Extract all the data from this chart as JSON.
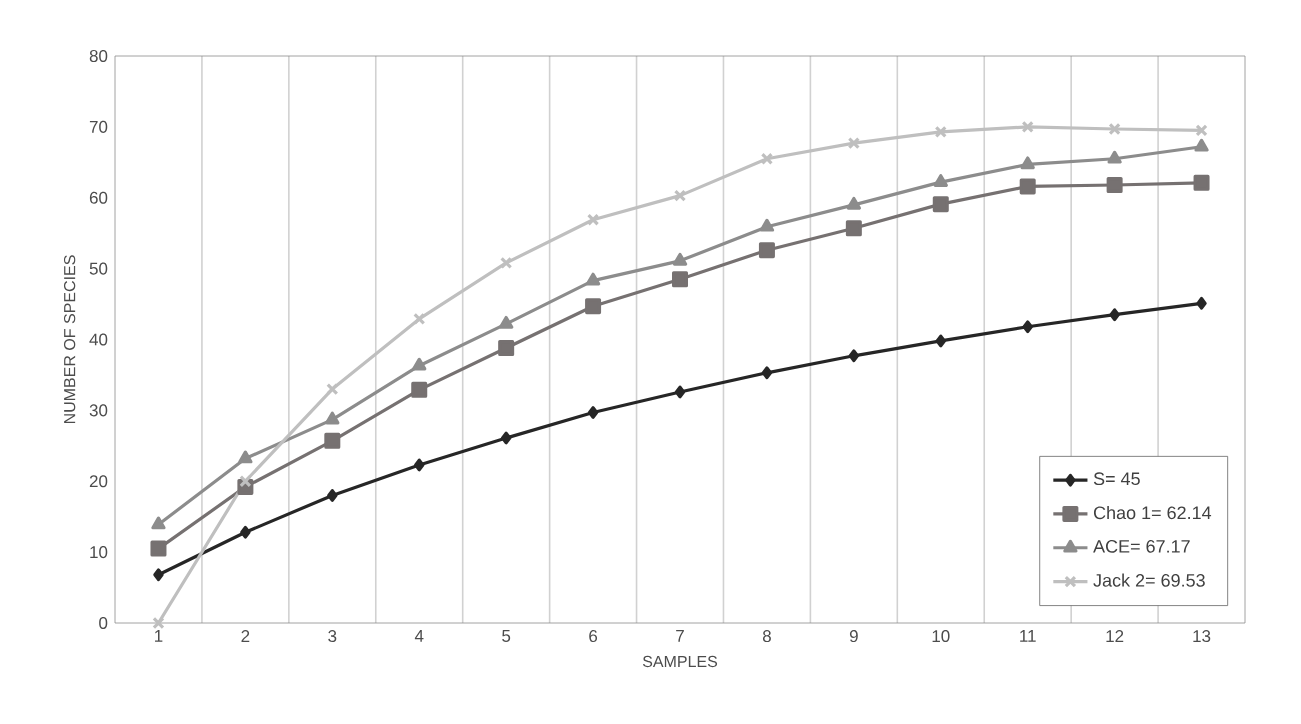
{
  "chart_data": {
    "type": "line",
    "xlabel": "SAMPLES",
    "ylabel": "NUMBER OF SPECIES",
    "categories": [
      "1",
      "2",
      "3",
      "4",
      "5",
      "6",
      "7",
      "8",
      "9",
      "10",
      "11",
      "12",
      "13"
    ],
    "series": [
      {
        "name": "S= 45",
        "color": "#262626",
        "marker": "diamond",
        "values": [
          6.8,
          12.8,
          18,
          22.3,
          26.1,
          29.7,
          32.6,
          35.3,
          37.7,
          39.8,
          41.8,
          43.5,
          45.1
        ]
      },
      {
        "name": "Chao 1= 62.14",
        "color": "#767171",
        "marker": "square",
        "values": [
          10.5,
          19.2,
          25.7,
          32.9,
          38.8,
          44.7,
          48.5,
          52.6,
          55.7,
          59.1,
          61.6,
          61.8,
          62.1
        ]
      },
      {
        "name": "ACE= 67.17",
        "color": "#8c8c8c",
        "marker": "triangle",
        "values": [
          13.9,
          23.2,
          28.7,
          36.3,
          42.2,
          48.3,
          51.1,
          55.9,
          59,
          62.2,
          64.7,
          65.5,
          67.2
        ]
      },
      {
        "name": "Jack 2= 69.53",
        "color": "#bfbfbf",
        "marker": "cross",
        "values": [
          0,
          20,
          33,
          42.9,
          50.8,
          56.9,
          60.3,
          65.5,
          67.7,
          69.3,
          70,
          69.7,
          69.5
        ]
      }
    ],
    "ylim": [
      0,
      80
    ],
    "yticks": [
      0,
      10,
      20,
      30,
      40,
      50,
      60,
      70,
      80
    ],
    "grid": "x",
    "legend": "bottom right"
  }
}
